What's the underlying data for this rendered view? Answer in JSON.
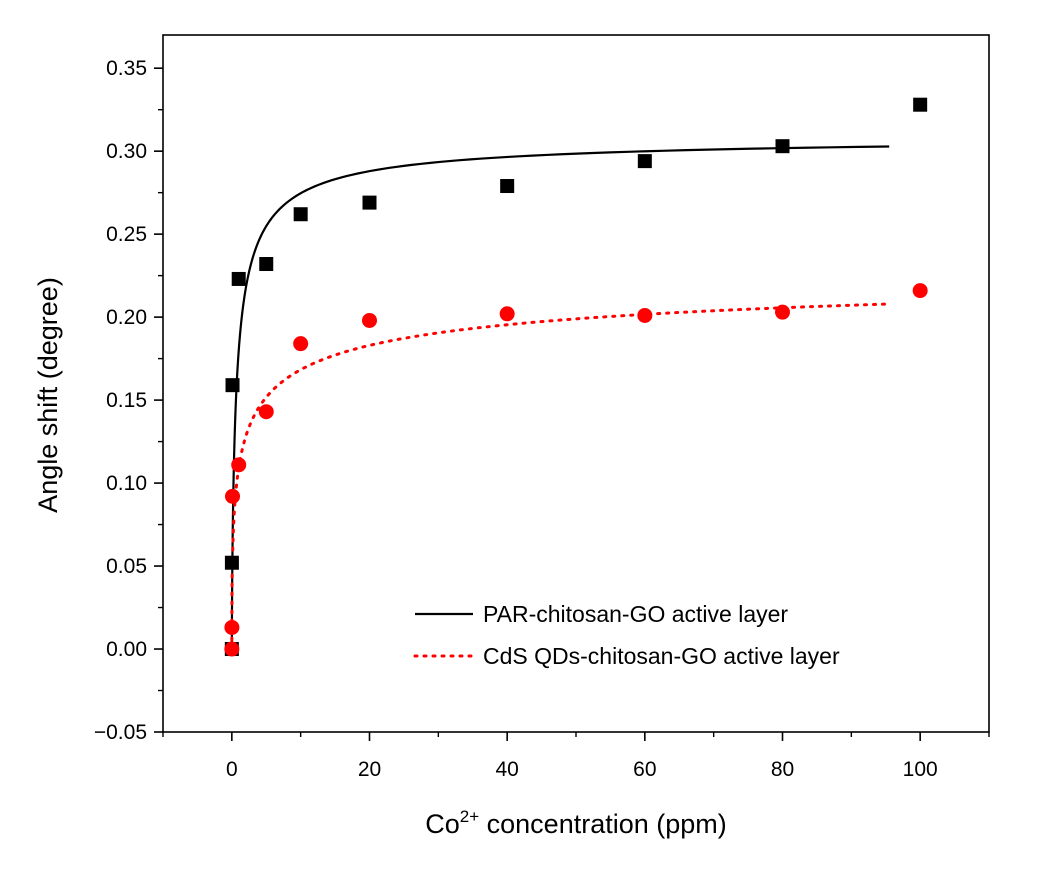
{
  "chart_data": {
    "type": "scatter",
    "title": "",
    "xlabel": {
      "main": "Co",
      "sup": "2+",
      "rest": " concentration (ppm)"
    },
    "ylabel": "Angle shift (degree)",
    "xlim": [
      -10,
      110
    ],
    "ylim": [
      -0.05,
      0.37
    ],
    "xticks": [
      0,
      20,
      40,
      60,
      80,
      100
    ],
    "xtick_labels": [
      "0",
      "20",
      "40",
      "60",
      "80",
      "100"
    ],
    "yticks": [
      -0.05,
      0.0,
      0.05,
      0.1,
      0.15,
      0.2,
      0.25,
      0.3,
      0.35
    ],
    "ytick_labels": [
      "−0.05",
      "0.00",
      "0.05",
      "0.10",
      "0.15",
      "0.20",
      "0.25",
      "0.30",
      "0.35"
    ],
    "grid": false,
    "legend_position": "bottom-right",
    "series": [
      {
        "name": "PAR-chitosan-GO active layer",
        "marker": "square",
        "color": "#000000",
        "line_style": "solid",
        "x": [
          0,
          0.01,
          0.1,
          1,
          5,
          10,
          20,
          40,
          60,
          80,
          100
        ],
        "y": [
          0.0,
          0.052,
          0.159,
          0.223,
          0.232,
          0.262,
          0.269,
          0.279,
          0.294,
          0.303,
          0.328
        ],
        "fit": {
          "model": "hill",
          "bmax": 0.31,
          "kd": 0.65,
          "n": 0.75
        }
      },
      {
        "name": "CdS QDs-chitosan-GO active layer",
        "marker": "circle",
        "color": "#ff0000",
        "line_style": "dotted",
        "x": [
          0,
          0.01,
          0.1,
          1,
          5,
          10,
          20,
          40,
          60,
          80,
          100
        ],
        "y": [
          0.0,
          0.013,
          0.092,
          0.111,
          0.143,
          0.184,
          0.198,
          0.202,
          0.201,
          0.203,
          0.216
        ],
        "fit": {
          "model": "hill",
          "bmax": 0.24,
          "kd": 1.5,
          "n": 0.45
        }
      }
    ]
  }
}
